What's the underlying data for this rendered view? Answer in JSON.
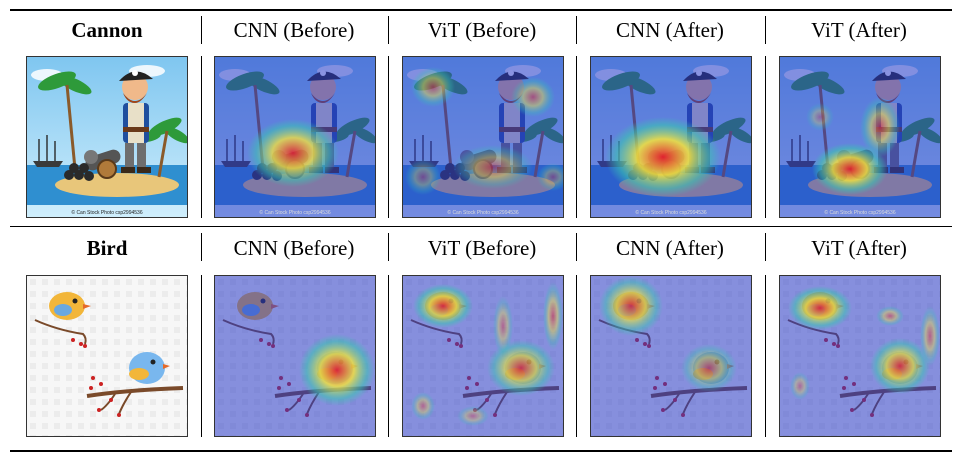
{
  "rows": [
    {
      "label": "Cannon",
      "columns": [
        "CNN (Before)",
        "ViT (Before)",
        "CNN (After)",
        "ViT (After)"
      ],
      "images": [
        {
          "name": "cannon-original",
          "kind": "pirate-cartoon",
          "overlay": "none",
          "watermark": "© Can Stock Photo   csp2994536"
        },
        {
          "name": "cannon-cnn-before",
          "kind": "pirate-cartoon",
          "overlay": "cnn-before",
          "watermark": "© Can Stock Photo   csp2994536"
        },
        {
          "name": "cannon-vit-before",
          "kind": "pirate-cartoon",
          "overlay": "vit-before",
          "watermark": "© Can Stock Photo   csp2994536"
        },
        {
          "name": "cannon-cnn-after",
          "kind": "pirate-cartoon",
          "overlay": "cnn-after",
          "watermark": "© Can Stock Photo   csp2994536"
        },
        {
          "name": "cannon-vit-after",
          "kind": "pirate-cartoon",
          "overlay": "vit-after",
          "watermark": "© Can Stock Photo   csp2994536"
        }
      ]
    },
    {
      "label": "Bird",
      "columns": [
        "CNN (Before)",
        "ViT (Before)",
        "CNN (After)",
        "ViT (After)"
      ],
      "images": [
        {
          "name": "bird-original",
          "kind": "birds-cartoon",
          "overlay": "none"
        },
        {
          "name": "bird-cnn-before",
          "kind": "birds-cartoon",
          "overlay": "cnn-before"
        },
        {
          "name": "bird-vit-before",
          "kind": "birds-cartoon",
          "overlay": "vit-before"
        },
        {
          "name": "bird-cnn-after",
          "kind": "birds-cartoon",
          "overlay": "cnn-after"
        },
        {
          "name": "bird-vit-after",
          "kind": "birds-cartoon",
          "overlay": "vit-after"
        }
      ]
    }
  ],
  "colors": {
    "heatmap_cold": "#2a3bc8",
    "heatmap_warm": "#f6e43a",
    "heatmap_hot": "#e8202a",
    "rule": "#000000"
  }
}
